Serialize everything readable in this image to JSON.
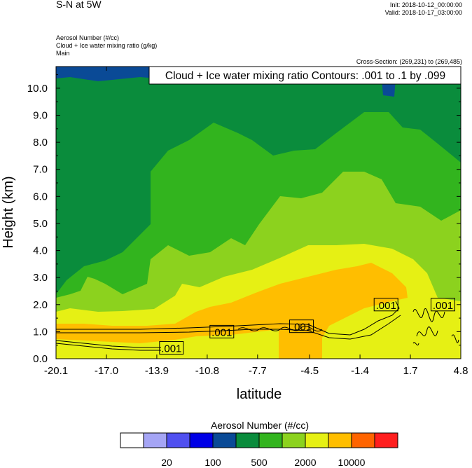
{
  "header": {
    "title": "S-N at 5W",
    "init": "Init: 2018-10-12_00:00:00",
    "valid": "Valid: 2018-10-17_03:00:00",
    "field1": "Aerosol Number   (#/cc)",
    "field2": "Cloud + Ice water mixing ratio   (g/kg)",
    "field3": "Main",
    "cross_section": "Cross-Section: (269,231) to (269,485)"
  },
  "chart_data": {
    "type": "heatmap",
    "title": "Cloud + Ice water mixing ratio Contours: .001 to .1 by .099",
    "xlabel": "latitude",
    "ylabel": "Height (km)",
    "x_tick_labels": [
      "-20.1",
      "-17.0",
      "-13.9",
      "-10.8",
      "-7.7",
      "-4.5",
      "-1.4",
      "1.7",
      "4.8"
    ],
    "y_tick_labels": [
      "0.0",
      "1.0",
      "2.0",
      "3.0",
      "4.0",
      "5.0",
      "6.0",
      "7.0",
      "8.0",
      "9.0",
      "10.0"
    ],
    "xlim": [
      -20.1,
      4.8
    ],
    "ylim": [
      0,
      10.8
    ],
    "contour_labels": [
      {
        "text": ".001",
        "lat": -13.0,
        "height": 0.4
      },
      {
        "text": ".001",
        "lat": -9.9,
        "height": 1.0
      },
      {
        "text": ".001",
        "lat": -5.0,
        "height": 1.2
      },
      {
        "text": ".001",
        "lat": 0.2,
        "height": 2.0
      },
      {
        "text": ".001",
        "lat": 3.7,
        "height": 2.0
      }
    ],
    "colorbar": {
      "title": "Aerosol Number  (#/cc)",
      "colors": [
        "#ffffff",
        "#a5a5f5",
        "#5050f0",
        "#0000e6",
        "#0a4a96",
        "#0a8c3c",
        "#32b41e",
        "#8cd21e",
        "#e6f014",
        "#ffbe00",
        "#ff6400",
        "#ff1e1e"
      ],
      "tick_labels": [
        "20",
        "100",
        "500",
        "2000",
        "10000"
      ]
    },
    "regions": [
      {
        "level": "100-200",
        "color": "#0a4a96",
        "desc": "top band"
      },
      {
        "level": "200-500",
        "color": "#0a8c3c"
      },
      {
        "level": "500-1000",
        "color": "#32b41e"
      },
      {
        "level": "1000-2000",
        "color": "#8cd21e"
      },
      {
        "level": "2000-5000",
        "color": "#e6f014"
      },
      {
        "level": "5000-10000",
        "color": "#ffbe00"
      }
    ]
  },
  "colors": {
    "blue": "#0a4a96",
    "dark_green": "#0a8c3c",
    "green": "#32b41e",
    "light_green": "#8cd21e",
    "yellow": "#e6f014",
    "orange": "#ffbe00"
  }
}
